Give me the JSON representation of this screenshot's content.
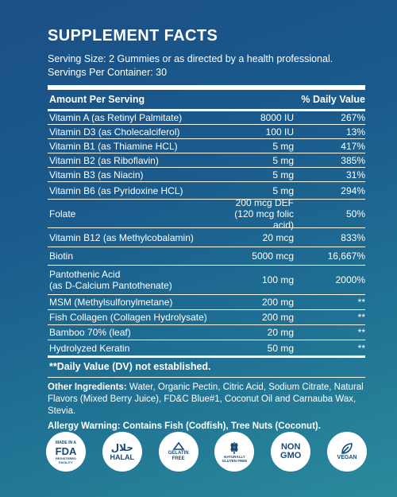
{
  "title": "SUPPLEMENT FACTS",
  "serving_size": "Serving Size: 2 Gummies or as directed by a health professional.",
  "servings_per_container": "Servings Per Container: 30",
  "header": {
    "amount": "Amount Per Serving",
    "dv": "% Daily Value"
  },
  "rows": [
    {
      "name": "Vitamin A (as Retinyl Palmitate)",
      "amount": "8000 IU",
      "dv": "267%"
    },
    {
      "name": "Vitamin D3 (as Cholecalciferol)",
      "amount": "100 IU",
      "dv": "13%"
    },
    {
      "name": "Vitamin B1 (as Thiamine HCL)",
      "amount": "5 mg",
      "dv": "417%"
    },
    {
      "name": "Vitamin B2 (as Riboflavin)",
      "amount": "5 mg",
      "dv": "385%"
    },
    {
      "name": "Vitamin B3 (as Niacin)",
      "amount": "5 mg",
      "dv": "31%"
    },
    {
      "name": "Vitamin B6 (as Pyridoxine HCL)",
      "amount": "5 mg",
      "dv": "294%"
    },
    {
      "name": "Folate",
      "amount": "200 mcg DEF",
      "amount2": "(120 mcg folic acid)",
      "dv": "50%"
    },
    {
      "name": "Vitamin B12 (as Methylcobalamin)",
      "amount": "20 mcg",
      "dv": "833%"
    },
    {
      "name": "Biotin",
      "amount": "5000 mcg",
      "dv": "16,667%"
    },
    {
      "name": "Pantothenic Acid",
      "name2": "(as D-Calcium Pantothenate)",
      "amount": "100 mg",
      "dv": "2000%"
    },
    {
      "name": "MSM (Methylsulfonylmetane)",
      "amount": "200 mg",
      "dv": "**"
    },
    {
      "name": "Fish Collagen (Collagen Hydrolysate)",
      "amount": "200 mg",
      "dv": "**"
    },
    {
      "name": "Bamboo 70% (leaf)",
      "amount": "20 mg",
      "dv": "**"
    },
    {
      "name": "Hydrolyzed Keratin",
      "amount": "50 mg",
      "dv": "**"
    }
  ],
  "dv_note": "**Daily Value (DV) not established.",
  "other_label": "Other Ingredients:",
  "other_text": "Water, Organic Pectin, Citric Acid, Sodium Citrate, Natural Flavors (Mixed Berry Juice), FD&C Blue#1, Coconut Oil and Carnauba Wax, Stevia.",
  "allergy": "Allergy Warning: Contains Fish (Codfish), Tree Nuts (Coconut).",
  "badges": {
    "fda_top": "MADE IN A",
    "fda_mid": "FDA",
    "fda_bottom": "REGISTERED FACILITY",
    "halal_arabic": "حلال",
    "halal": "HALAL",
    "gelatin": "GELATIN FREE",
    "gluten": "NATURALLY GLUTEN FREE",
    "nongmo_1": "NON",
    "nongmo_2": "GMO",
    "vegan": "VEGAN"
  }
}
